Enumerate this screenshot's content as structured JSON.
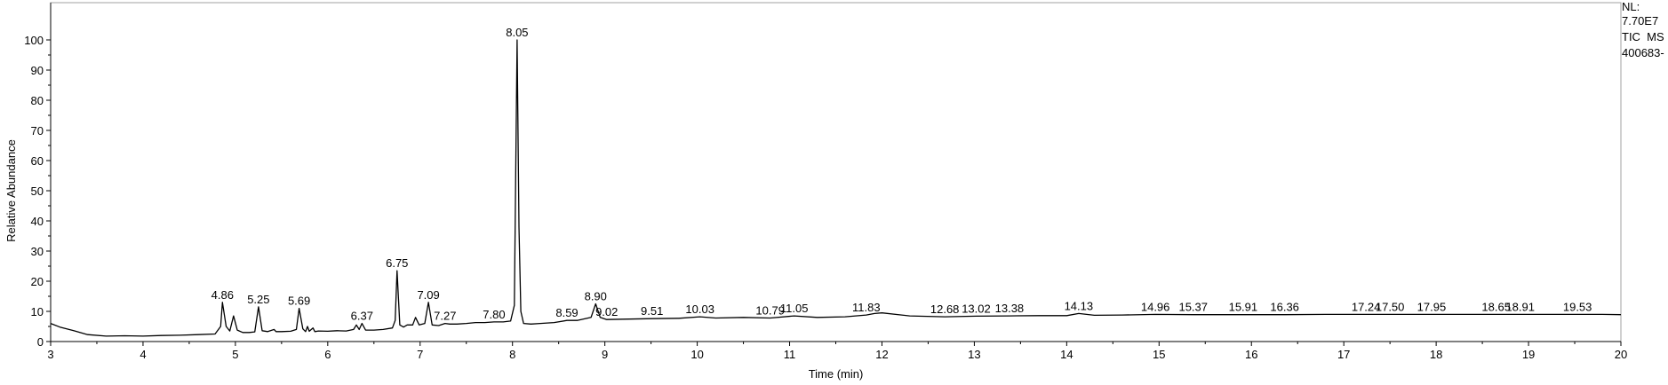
{
  "chart_data": {
    "type": "line",
    "xlabel": "Time (min)",
    "ylabel": "Relative Abundance",
    "xlim": [
      3,
      20
    ],
    "ylim": [
      0,
      100
    ],
    "x_ticks": [
      3,
      4,
      5,
      6,
      7,
      8,
      9,
      10,
      11,
      12,
      13,
      14,
      15,
      16,
      17,
      18,
      19,
      20
    ],
    "y_ticks": [
      0,
      10,
      20,
      30,
      40,
      50,
      60,
      70,
      80,
      90,
      100
    ],
    "grid": false,
    "series": [
      {
        "color": "#000000",
        "x": [
          3.0,
          3.1,
          3.25,
          3.4,
          3.6,
          3.8,
          4.0,
          4.2,
          4.4,
          4.6,
          4.78,
          4.84,
          4.86,
          4.9,
          4.94,
          4.98,
          5.02,
          5.08,
          5.15,
          5.21,
          5.25,
          5.29,
          5.35,
          5.42,
          5.44,
          5.5,
          5.6,
          5.66,
          5.69,
          5.73,
          5.76,
          5.78,
          5.8,
          5.84,
          5.86,
          5.9,
          6.0,
          6.1,
          6.2,
          6.28,
          6.31,
          6.34,
          6.37,
          6.41,
          6.5,
          6.6,
          6.7,
          6.73,
          6.75,
          6.78,
          6.82,
          6.86,
          6.92,
          6.95,
          6.99,
          7.05,
          7.09,
          7.13,
          7.2,
          7.27,
          7.32,
          7.4,
          7.5,
          7.6,
          7.7,
          7.8,
          7.9,
          7.98,
          8.02,
          8.05,
          8.07,
          8.09,
          8.12,
          8.2,
          8.3,
          8.45,
          8.59,
          8.7,
          8.85,
          8.9,
          8.95,
          9.02,
          9.2,
          9.51,
          9.8,
          10.03,
          10.2,
          10.5,
          10.79,
          11.05,
          11.3,
          11.6,
          11.83,
          11.92,
          12.0,
          12.3,
          12.68,
          13.02,
          13.38,
          13.7,
          14.0,
          14.13,
          14.3,
          14.6,
          14.96,
          15.37,
          15.91,
          16.36,
          16.8,
          17.24,
          17.5,
          17.95,
          18.3,
          18.65,
          18.91,
          19.2,
          19.53,
          19.8,
          20.0
        ],
        "y": [
          6.0,
          4.8,
          3.6,
          2.3,
          1.8,
          1.9,
          1.8,
          2.0,
          2.1,
          2.3,
          2.5,
          5.0,
          13.0,
          5.0,
          3.5,
          8.5,
          3.8,
          3.0,
          3.0,
          3.2,
          11.5,
          3.6,
          3.3,
          4.0,
          3.3,
          3.3,
          3.4,
          4.0,
          11.0,
          4.2,
          3.3,
          5.0,
          3.4,
          4.5,
          3.3,
          3.5,
          3.4,
          3.6,
          3.5,
          4.0,
          5.5,
          4.0,
          6.0,
          3.8,
          3.8,
          4.0,
          4.5,
          7.0,
          23.5,
          5.5,
          4.8,
          5.5,
          5.5,
          8.0,
          5.5,
          6.0,
          13.0,
          5.5,
          5.3,
          6.0,
          5.8,
          5.8,
          6.0,
          6.3,
          6.3,
          6.5,
          6.5,
          6.8,
          12.0,
          100.0,
          38.0,
          10.0,
          6.0,
          5.8,
          6.0,
          6.3,
          7.0,
          7.0,
          8.0,
          12.5,
          8.0,
          7.3,
          7.4,
          7.6,
          7.7,
          8.2,
          7.8,
          8.0,
          7.8,
          8.5,
          8.0,
          8.2,
          8.8,
          9.3,
          9.5,
          8.5,
          8.2,
          8.4,
          8.5,
          8.6,
          8.6,
          9.3,
          8.7,
          8.8,
          9.0,
          8.9,
          8.9,
          8.9,
          9.0,
          9.0,
          9.0,
          9.0,
          9.0,
          9.0,
          9.0,
          9.0,
          9.0,
          9.0,
          8.9
        ]
      }
    ],
    "peaks": [
      {
        "label": "4.86",
        "x": 4.86,
        "y": 13.0
      },
      {
        "label": "5.25",
        "x": 5.25,
        "y": 11.5
      },
      {
        "label": "5.69",
        "x": 5.69,
        "y": 11.0
      },
      {
        "label": "6.37",
        "x": 6.37,
        "y": 6.0
      },
      {
        "label": "6.75",
        "x": 6.75,
        "y": 23.5
      },
      {
        "label": "7.09",
        "x": 7.09,
        "y": 13.0
      },
      {
        "label": "7.27",
        "x": 7.27,
        "y": 6.0
      },
      {
        "label": "7.80",
        "x": 7.8,
        "y": 6.5
      },
      {
        "label": "8.05",
        "x": 8.05,
        "y": 100.0
      },
      {
        "label": "8.59",
        "x": 8.59,
        "y": 7.0
      },
      {
        "label": "8.90",
        "x": 8.9,
        "y": 12.5
      },
      {
        "label": "9.02",
        "x": 9.02,
        "y": 7.3
      },
      {
        "label": "9.51",
        "x": 9.51,
        "y": 7.6
      },
      {
        "label": "10.03",
        "x": 10.03,
        "y": 8.2
      },
      {
        "label": "10.79",
        "x": 10.79,
        "y": 7.8
      },
      {
        "label": "11.05",
        "x": 11.05,
        "y": 8.5
      },
      {
        "label": "11.83",
        "x": 11.83,
        "y": 8.8
      },
      {
        "label": "12.68",
        "x": 12.68,
        "y": 8.2
      },
      {
        "label": "13.02",
        "x": 13.02,
        "y": 8.4
      },
      {
        "label": "13.38",
        "x": 13.38,
        "y": 8.5
      },
      {
        "label": "14.13",
        "x": 14.13,
        "y": 9.3
      },
      {
        "label": "14.96",
        "x": 14.96,
        "y": 9.0
      },
      {
        "label": "15.37",
        "x": 15.37,
        "y": 8.9
      },
      {
        "label": "15.91",
        "x": 15.91,
        "y": 8.9
      },
      {
        "label": "16.36",
        "x": 16.36,
        "y": 8.9
      },
      {
        "label": "17.24",
        "x": 17.24,
        "y": 9.0
      },
      {
        "label": "17.50",
        "x": 17.5,
        "y": 9.0
      },
      {
        "label": "17.95",
        "x": 17.95,
        "y": 9.0
      },
      {
        "label": "18.65",
        "x": 18.65,
        "y": 9.0
      },
      {
        "label": "18.91",
        "x": 18.91,
        "y": 9.0
      },
      {
        "label": "19.53",
        "x": 19.53,
        "y": 9.0
      }
    ],
    "annotations": {
      "nl_label": "NL:",
      "nl_value": "7.70E7",
      "scan_filter": "TIC  MS",
      "sample_id": "400683-"
    }
  }
}
